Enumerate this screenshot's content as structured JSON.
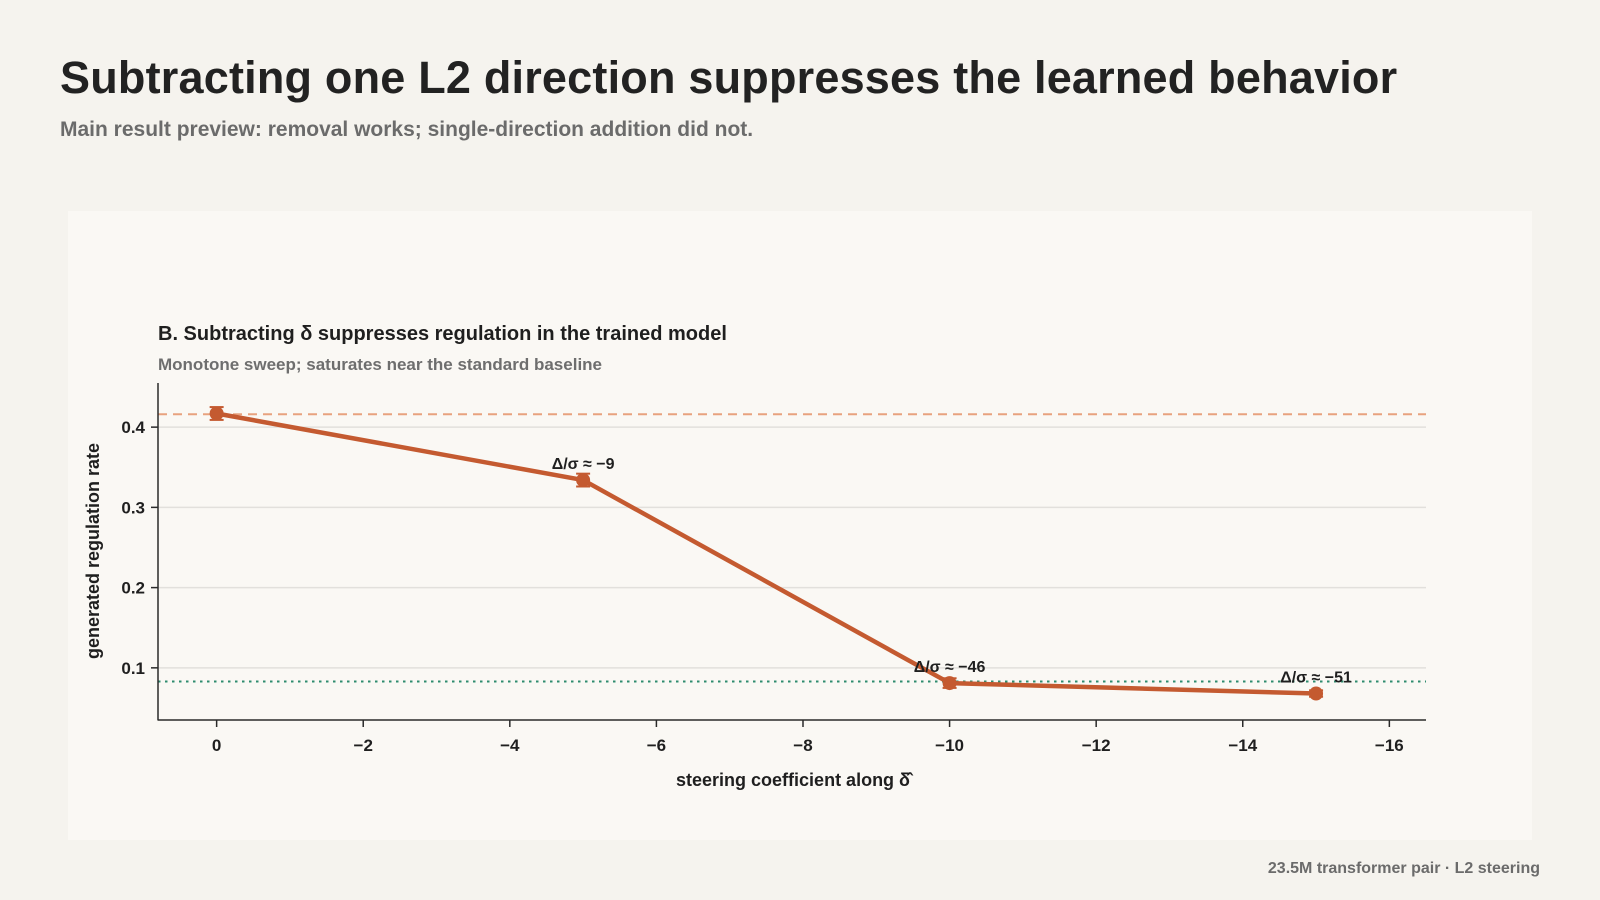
{
  "header": {
    "title": "Subtracting one L2 direction suppresses the learned behavior",
    "subtitle": "Main result preview: removal works; single-direction addition did not."
  },
  "footer": {
    "text": "23.5M transformer pair · L2 steering"
  },
  "chart_data": {
    "type": "line",
    "title": "B. Subtracting δ suppresses regulation in the trained model",
    "subtitle": "Monotone sweep; saturates near the standard baseline",
    "xlabel": "steering coefficient along δ̂",
    "ylabel": "generated regulation rate",
    "x_reversed": true,
    "xlim": [
      0.8,
      -16.5
    ],
    "ylim": [
      0.035,
      0.455
    ],
    "xticks": [
      0,
      -2,
      -4,
      -6,
      -8,
      -10,
      -12,
      -14,
      -16
    ],
    "xtick_labels": [
      "0",
      "−2",
      "−4",
      "−6",
      "−8",
      "−10",
      "−12",
      "−14",
      "−16"
    ],
    "yticks": [
      0.1,
      0.2,
      0.3,
      0.4
    ],
    "ytick_labels": [
      "0.1",
      "0.2",
      "0.3",
      "0.4"
    ],
    "grid": "horizontal",
    "series": [
      {
        "color": "#c45a30",
        "points": [
          {
            "x": 0,
            "y": 0.417,
            "err": 0.008,
            "annotation": ""
          },
          {
            "x": -5,
            "y": 0.334,
            "err": 0.008,
            "annotation": "Δ/σ ≈ −9"
          },
          {
            "x": -10,
            "y": 0.081,
            "err": 0.006,
            "annotation": "Δ/σ ≈ −46"
          },
          {
            "x": -15,
            "y": 0.068,
            "err": 0.004,
            "annotation": "Δ/σ ≈ −51"
          }
        ]
      }
    ],
    "reference_lines": [
      {
        "y": 0.416,
        "style": "dashed",
        "color": "#e8a27e"
      },
      {
        "y": 0.083,
        "style": "dotted",
        "color": "#2e8b6e"
      }
    ]
  }
}
